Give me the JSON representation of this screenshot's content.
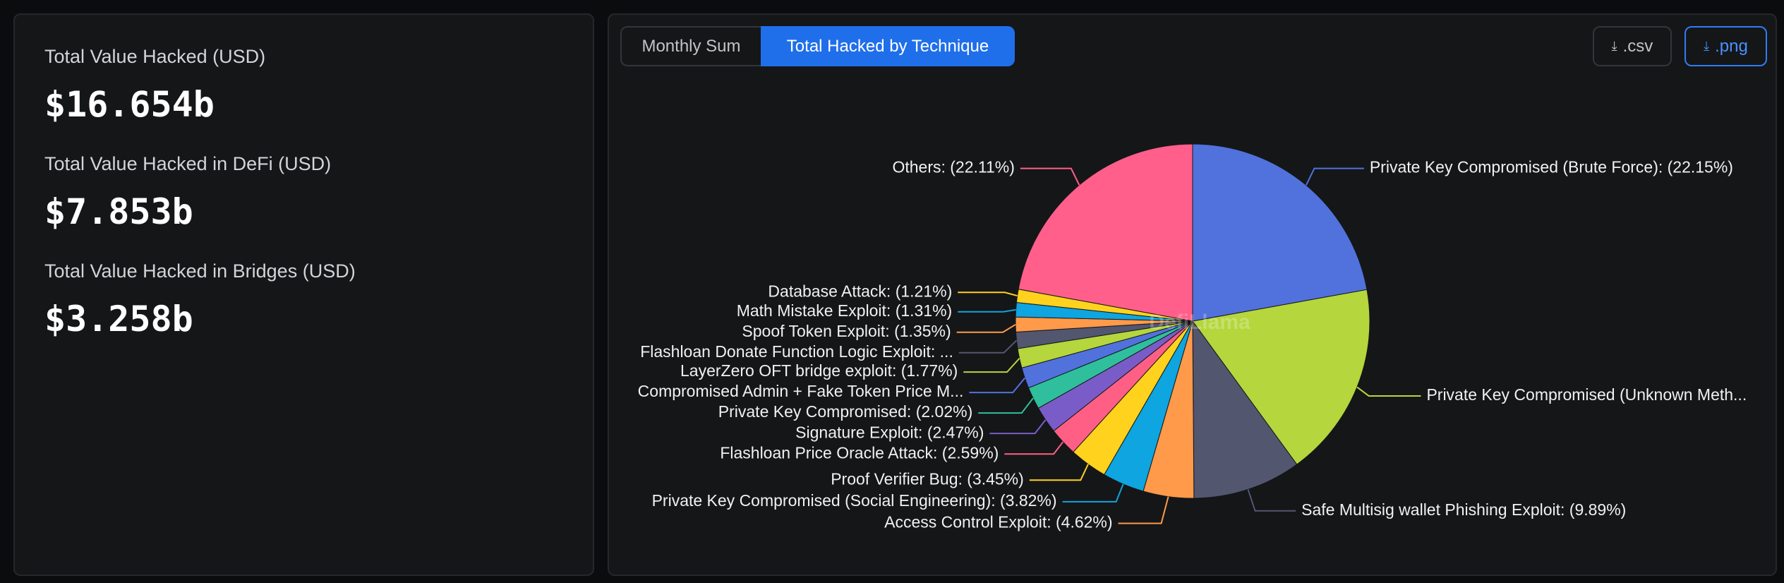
{
  "stats": [
    {
      "label": "Total Value Hacked (USD)",
      "value": "$16.654b"
    },
    {
      "label": "Total Value Hacked in DeFi (USD)",
      "value": "$7.853b"
    },
    {
      "label": "Total Value Hacked in Bridges (USD)",
      "value": "$3.258b"
    }
  ],
  "tabs": [
    "Monthly Sum",
    "Total Hacked by Technique"
  ],
  "downloads": [
    ".csv",
    ".png"
  ],
  "watermark": "DefiLlama",
  "chart_data": {
    "type": "pie",
    "categories": [
      "Private Key Compromised (Brute Force): (22.15%)",
      "Private Key Compromised (Unknown Meth...",
      "Safe Multisig wallet Phishing Exploit: (9.89%)",
      "Access Control Exploit: (4.62%)",
      "Private Key Compromised (Social Engineering): (3.82%)",
      "Proof Verifier Bug: (3.45%)",
      "Flashloan Price Oracle Attack: (2.59%)",
      "Signature Exploit: (2.47%)",
      "Private Key Compromised: (2.02%)",
      "Compromised Admin + Fake Token Price M...",
      "LayerZero OFT bridge exploit: (1.77%)",
      "Flashloan Donate Function Logic Exploit: ...",
      "Spoof Token Exploit: (1.35%)",
      "Math Mistake Exploit: (1.31%)",
      "Database Attack: (1.21%)",
      "Others: (22.11%)"
    ],
    "values": [
      22.15,
      17.84,
      9.89,
      4.62,
      3.82,
      3.45,
      2.59,
      2.47,
      2.02,
      1.9,
      1.77,
      1.5,
      1.35,
      1.31,
      1.21,
      22.11
    ],
    "colors": [
      "#5172dc",
      "#b5d63c",
      "#53566f",
      "#ff9a4a",
      "#0ea5e0",
      "#ffd21e",
      "#ff5f84",
      "#7a5cc8",
      "#2fbf9c",
      "#5172dc",
      "#b5d63c",
      "#53566f",
      "#ff9a4a",
      "#0ea5e0",
      "#ffd21e",
      "#ff5f8a"
    ]
  }
}
